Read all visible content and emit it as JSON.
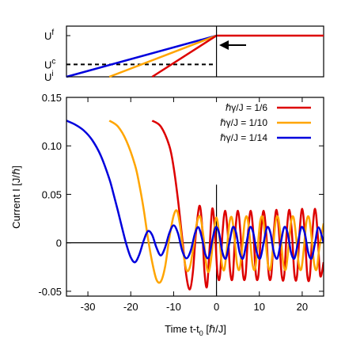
{
  "chart_data": [
    {
      "type": "line",
      "panel": "inset-protocol",
      "y_tick_labels": [
        "U",
        "U",
        "U"
      ],
      "y_tick_subscripts": [
        "f",
        "c",
        "i"
      ],
      "x_range": [
        -35,
        25
      ],
      "y_range": [
        0,
        1
      ],
      "levels": {
        "U_i": 0.0,
        "U_c": 0.3,
        "U_f": 1.0
      },
      "ramps": [
        {
          "rate_label": "1/14",
          "x_start": -35,
          "x_end": 0,
          "color": "#0000dd"
        },
        {
          "rate_label": "1/10",
          "x_start": -25,
          "x_end": 0,
          "color": "#ffa500"
        },
        {
          "rate_label": "1/6",
          "x_start": -15,
          "x_end": 0,
          "color": "#dd0000"
        }
      ],
      "hold_after_ramp": {
        "x_start": 0,
        "x_end": 25,
        "level": 1.0,
        "color": "#dd0000"
      },
      "dashed_critical_line": {
        "level": 0.3,
        "x_start": -35,
        "x_end": 0
      },
      "vertical_marker_x": 0,
      "arrow": {
        "points_to_x": 0,
        "points_to_y": 0.75,
        "direction": "left"
      }
    },
    {
      "type": "line",
      "panel": "main-current",
      "xlabel_main": "Time t-t",
      "xlabel_sub": "0",
      "xlabel_unit": " [ℏ/J]",
      "ylabel": "Current I [J/ℏ]",
      "xlim": [
        -35,
        25
      ],
      "ylim": [
        -0.055,
        0.15
      ],
      "x_ticks": [
        -30,
        -20,
        -10,
        0,
        10,
        20
      ],
      "x_tick_labels": [
        "-30",
        "-20",
        "-10",
        "0",
        "10",
        "20"
      ],
      "y_ticks": [
        -0.05,
        0,
        0.05,
        0.1,
        0.15
      ],
      "y_tick_labels": [
        "-0.05",
        "0",
        "0.05",
        "0.10",
        "0.15"
      ],
      "zero_line": true,
      "vertical_marker_x": 0,
      "legend_position": "top-right",
      "series": [
        {
          "name": "ℏγ/J = 1/6",
          "color": "#dd0000",
          "x": [
            -15,
            -13,
            -11,
            -10,
            -9,
            -8,
            -7,
            -6.2,
            -5.5,
            -4.8,
            -4,
            -3.4,
            -2.8,
            -2.2,
            -1.6,
            -1,
            -0.4,
            0.2,
            0.8,
            1.4,
            2,
            2.6,
            3.2,
            3.8,
            4.4,
            5,
            5.6,
            6.2,
            6.8,
            7.4,
            8,
            8.6,
            9.2,
            9.8,
            10.4,
            11,
            11.6,
            12.2,
            12.8,
            13.4,
            14,
            14.6,
            15.2,
            15.8,
            16.4,
            17,
            17.6,
            18.2,
            18.8,
            19.4,
            20,
            20.6,
            21.2,
            21.8,
            22.4,
            23,
            23.6,
            24.2,
            25
          ],
          "y": [
            0.126,
            0.12,
            0.1,
            0.078,
            0.045,
            0.005,
            -0.035,
            -0.048,
            -0.03,
            0.01,
            0.038,
            0.02,
            -0.03,
            -0.045,
            -0.005,
            0.035,
            0.015,
            -0.03,
            -0.035,
            0.01,
            0.033,
            0.012,
            -0.03,
            -0.035,
            0.012,
            0.033,
            0.01,
            -0.033,
            -0.033,
            0.012,
            0.033,
            0.01,
            -0.033,
            -0.033,
            0.012,
            0.033,
            0.01,
            -0.033,
            -0.033,
            0.012,
            0.034,
            0.01,
            -0.033,
            -0.034,
            0.012,
            0.034,
            0.01,
            -0.033,
            -0.034,
            0.012,
            0.035,
            0.01,
            -0.034,
            -0.034,
            0.012,
            0.035,
            0.01,
            -0.034,
            -0.02
          ]
        },
        {
          "name": "ℏγ/J = 1/10",
          "color": "#ffa500",
          "x": [
            -25,
            -23,
            -21,
            -19,
            -18,
            -17,
            -16,
            -15,
            -14,
            -13,
            -12,
            -11,
            -10,
            -9.2,
            -8.5,
            -7.8,
            -7,
            -6.2,
            -5.4,
            -4.6,
            -3.8,
            -3,
            -2.4,
            -1.8,
            -1.2,
            -0.6,
            0,
            0.6,
            1.2,
            1.8,
            2.4,
            3,
            3.6,
            4.2,
            4.8,
            5.4,
            6,
            6.6,
            7.2,
            7.8,
            8.4,
            9,
            9.6,
            10.2,
            10.8,
            11.4,
            12,
            12.6,
            13.2,
            13.8,
            14.4,
            15,
            15.6,
            16.2,
            16.8,
            17.4,
            18,
            18.6,
            19.2,
            19.8,
            20.4,
            21,
            21.6,
            22.2,
            22.8,
            23.4,
            24,
            25
          ],
          "y": [
            0.126,
            0.12,
            0.105,
            0.08,
            0.06,
            0.035,
            0.005,
            -0.02,
            -0.038,
            -0.04,
            -0.025,
            0.005,
            0.028,
            0.033,
            0.018,
            -0.008,
            -0.028,
            -0.025,
            -0.005,
            0.02,
            0.027,
            0.005,
            -0.022,
            -0.03,
            -0.015,
            0.012,
            0.026,
            0.01,
            -0.02,
            -0.028,
            -0.008,
            0.02,
            0.026,
            0.005,
            -0.022,
            -0.027,
            -0.005,
            0.022,
            0.026,
            0.005,
            -0.022,
            -0.027,
            -0.005,
            0.022,
            0.026,
            0.005,
            -0.022,
            -0.027,
            -0.005,
            0.022,
            0.026,
            0.005,
            -0.022,
            -0.027,
            -0.005,
            0.022,
            0.026,
            0.005,
            -0.022,
            -0.027,
            -0.005,
            0.022,
            0.026,
            0.005,
            -0.022,
            -0.027,
            -0.005,
            0.02
          ]
        },
        {
          "name": "ℏγ/J = 1/14",
          "color": "#0000dd",
          "x": [
            -35,
            -33,
            -31,
            -29,
            -27,
            -25,
            -24,
            -23,
            -22,
            -21,
            -20,
            -19,
            -18,
            -17,
            -16,
            -15,
            -14,
            -13,
            -12,
            -11,
            -10,
            -9,
            -8,
            -7,
            -6,
            -5,
            -4.2,
            -3.4,
            -2.6,
            -1.8,
            -1,
            -0.2,
            0.6,
            1.4,
            2.2,
            3,
            3.8,
            4.6,
            5.4,
            6.2,
            7,
            7.8,
            8.6,
            9.4,
            10.2,
            11,
            11.8,
            12.6,
            13.4,
            14.2,
            15,
            15.8,
            16.6,
            17.4,
            18.2,
            19,
            19.8,
            20.6,
            21.4,
            22.2,
            23,
            23.8,
            25
          ],
          "y": [
            0.126,
            0.122,
            0.116,
            0.106,
            0.09,
            0.066,
            0.05,
            0.033,
            0.015,
            -0.002,
            -0.015,
            -0.02,
            -0.012,
            0.002,
            0.012,
            0.008,
            -0.005,
            -0.013,
            -0.005,
            0.01,
            0.018,
            0.01,
            -0.008,
            -0.016,
            -0.008,
            0.01,
            0.016,
            0.005,
            -0.012,
            -0.015,
            0.002,
            0.016,
            0.01,
            -0.01,
            -0.016,
            0.0,
            0.016,
            0.01,
            -0.01,
            -0.016,
            0.0,
            0.016,
            0.01,
            -0.01,
            -0.016,
            0.0,
            0.016,
            0.01,
            -0.01,
            -0.016,
            0.0,
            0.016,
            0.01,
            -0.01,
            -0.016,
            0.0,
            0.016,
            0.01,
            -0.01,
            -0.016,
            0.0,
            0.016,
            0.0
          ]
        }
      ]
    }
  ]
}
